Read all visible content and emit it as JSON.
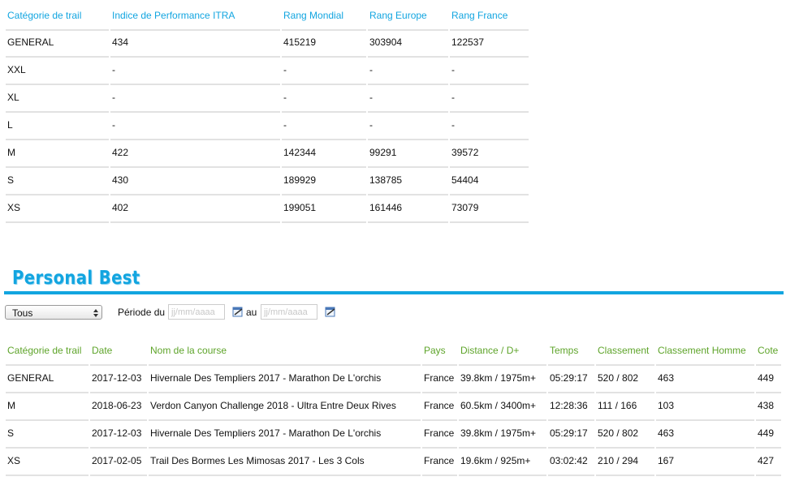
{
  "performance_table": {
    "headers": [
      "Catégorie de trail",
      "Indice de Performance ITRA",
      "Rang Mondial",
      "Rang Europe",
      "Rang France"
    ],
    "rows": [
      [
        "GENERAL",
        "434",
        "415219",
        "303904",
        "122537"
      ],
      [
        "XXL",
        "-",
        "-",
        "-",
        "-"
      ],
      [
        "XL",
        "-",
        "-",
        "-",
        "-"
      ],
      [
        "L",
        "-",
        "-",
        "-",
        "-"
      ],
      [
        "M",
        "422",
        "142344",
        "99291",
        "39572"
      ],
      [
        "S",
        "430",
        "189929",
        "138785",
        "54404"
      ],
      [
        "XS",
        "402",
        "199051",
        "161446",
        "73079"
      ]
    ]
  },
  "personal_best": {
    "title": "Personal Best",
    "filter": {
      "category": "Tous",
      "period_label": "Période du",
      "from_placeholder": "jj/mm/aaaa",
      "to_label": "au",
      "to_placeholder": "jj/mm/aaaa"
    },
    "table": {
      "headers": [
        "Catégorie de trail",
        "Date",
        "Nom de la course",
        "Pays",
        "Distance / D+",
        "Temps",
        "Classement",
        "Classement Homme",
        "Cote"
      ],
      "rows": [
        [
          "GENERAL",
          "2017-12-03",
          "Hivernale Des Templiers 2017 - Marathon De L'orchis",
          "France",
          "39.8km / 1975m+",
          "05:29:17",
          "520 / 802",
          "463",
          "449"
        ],
        [
          "M",
          "2018-06-23",
          "Verdon Canyon Challenge 2018 - Ultra Entre Deux Rives",
          "France",
          "60.5km / 3400m+",
          "12:28:36",
          "111 / 166",
          "103",
          "438"
        ],
        [
          "S",
          "2017-12-03",
          "Hivernale Des Templiers 2017 - Marathon De L'orchis",
          "France",
          "39.8km / 1975m+",
          "05:29:17",
          "520 / 802",
          "463",
          "449"
        ],
        [
          "XS",
          "2017-02-05",
          "Trail Des Bormes Les Mimosas 2017 - Les 3 Cols",
          "France",
          "19.6km / 925m+",
          "03:02:42",
          "210 / 294",
          "167",
          "427"
        ]
      ]
    }
  }
}
